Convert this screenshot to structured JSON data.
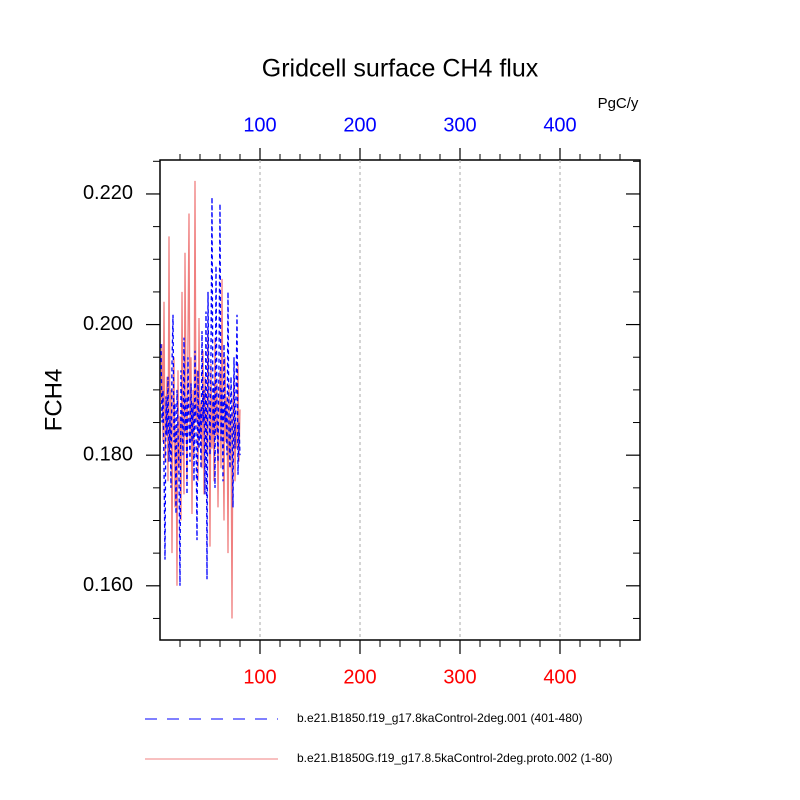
{
  "chart_data": {
    "type": "line",
    "title": "Gridcell surface CH4 flux",
    "ylabel": "FCH4",
    "x2label": "PgC/y",
    "x": [
      1,
      2,
      3,
      4,
      5,
      6,
      7,
      8,
      9,
      10,
      11,
      12,
      13,
      14,
      15,
      16,
      17,
      18,
      19,
      20,
      21,
      22,
      23,
      24,
      25,
      26,
      27,
      28,
      29,
      30,
      31,
      32,
      33,
      34,
      35,
      36,
      37,
      38,
      39,
      40,
      41,
      42,
      43,
      44,
      45,
      46,
      47,
      48,
      49,
      50,
      51,
      52,
      53,
      54,
      55,
      56,
      57,
      58,
      59,
      60,
      61,
      62,
      63,
      64,
      65,
      66,
      67,
      68,
      69,
      70,
      71,
      72,
      73,
      74,
      75,
      76,
      77,
      78,
      79,
      80
    ],
    "series": [
      {
        "name": "b.e21.B1850.f19_g17.8kaControl-2deg.001 (401-480)",
        "color": "#0000ff",
        "dash": "dashed",
        "values": [
          0.197,
          0.185,
          0.19,
          0.178,
          0.164,
          0.189,
          0.183,
          0.192,
          0.179,
          0.186,
          0.175,
          0.194,
          0.2015,
          0.182,
          0.188,
          0.171,
          0.19,
          0.184,
          0.177,
          0.16,
          0.193,
          0.186,
          0.18,
          0.198,
          0.183,
          0.189,
          0.174,
          0.195,
          0.185,
          0.179,
          0.191,
          0.182,
          0.188,
          0.176,
          0.196,
          0.184,
          0.167,
          0.193,
          0.181,
          0.187,
          0.178,
          0.199,
          0.185,
          0.19,
          0.174,
          0.202,
          0.161,
          0.205,
          0.188,
          0.18,
          0.196,
          0.2195,
          0.183,
          0.191,
          0.175,
          0.209,
          0.186,
          0.179,
          0.194,
          0.2185,
          0.182,
          0.19,
          0.176,
          0.197,
          0.185,
          0.188,
          0.18,
          0.205,
          0.183,
          0.178,
          0.192,
          0.186,
          0.172,
          0.195,
          0.181,
          0.189,
          0.2015,
          0.177,
          0.185,
          0.18
        ]
      },
      {
        "name": "b.e21.B1850G.f19_g17.8.5kaControl-2deg.proto.002 (1-80)",
        "color": "#f08080",
        "dash": "solid",
        "values": [
          0.188,
          0.197,
          0.182,
          0.2035,
          0.179,
          0.186,
          0.192,
          0.176,
          0.2135,
          0.181,
          0.19,
          0.165,
          0.188,
          0.195,
          0.172,
          0.184,
          0.16,
          0.193,
          0.178,
          0.186,
          0.17,
          0.205,
          0.183,
          0.174,
          0.211,
          0.189,
          0.176,
          0.198,
          0.217,
          0.182,
          0.195,
          0.171,
          0.19,
          0.18,
          0.222,
          0.185,
          0.193,
          0.176,
          0.201,
          0.183,
          0.188,
          0.178,
          0.196,
          0.174,
          0.192,
          0.185,
          0.18,
          0.199,
          0.187,
          0.166,
          0.194,
          0.181,
          0.189,
          0.176,
          0.198,
          0.183,
          0.191,
          0.172,
          0.186,
          0.193,
          0.178,
          0.207,
          0.184,
          0.17,
          0.195,
          0.182,
          0.189,
          0.165,
          0.191,
          0.18,
          0.186,
          0.155,
          0.188,
          0.192,
          0.176,
          0.185,
          0.181,
          0.194,
          0.179,
          0.187
        ]
      }
    ],
    "xlim": [
      0,
      480
    ],
    "xticks": [
      100,
      200,
      300,
      400
    ],
    "xtick_color": "#ff0000",
    "x2ticks": [
      100,
      200,
      300,
      400
    ],
    "x2tick_color": "#0000ff",
    "xminorticks": [
      20,
      40,
      60,
      80,
      120,
      140,
      160,
      180,
      220,
      240,
      260,
      280,
      320,
      340,
      360,
      380,
      420,
      440,
      460
    ],
    "ylim": [
      0.1517,
      0.2252
    ],
    "yticks": [
      {
        "value": 0.16,
        "label": "0.160"
      },
      {
        "value": 0.18,
        "label": "0.180"
      },
      {
        "value": 0.2,
        "label": "0.200"
      },
      {
        "value": 0.22,
        "label": "0.220"
      }
    ],
    "yminorticks": [
      0.155,
      0.165,
      0.17,
      0.175,
      0.185,
      0.19,
      0.195,
      0.205,
      0.21,
      0.215,
      0.225
    ],
    "grid": "x"
  }
}
